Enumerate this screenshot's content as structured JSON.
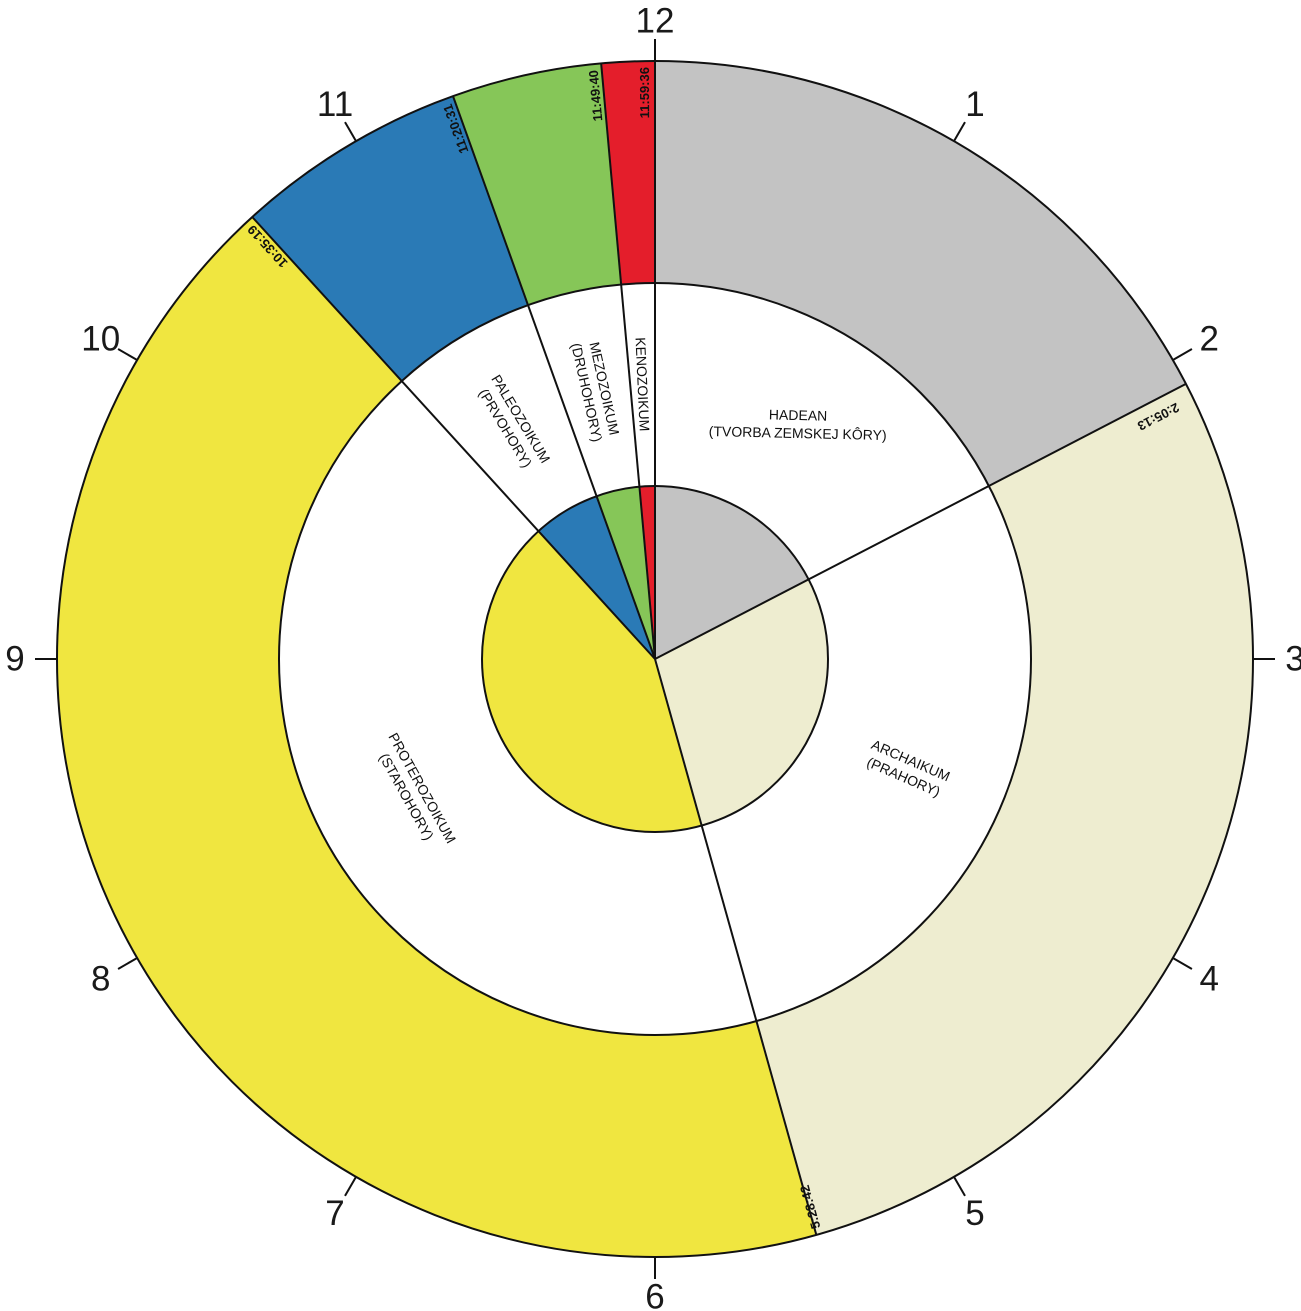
{
  "colors": {
    "hadean": "#c3c3c3",
    "archaikum": "#eeedd0",
    "proterozoikum": "#f0e640",
    "paleozoikum": "#2a7ab6",
    "mezozoikum": "#86c658",
    "kenozoikum": "#e41e2b",
    "line": "#111111"
  },
  "hours": [
    "12",
    "1",
    "2",
    "3",
    "4",
    "5",
    "6",
    "7",
    "8",
    "9",
    "10",
    "11"
  ],
  "eras": [
    {
      "id": "hadean",
      "start_time": "0:00:00",
      "end_time": "2:05:13",
      "line1": "HADEAN",
      "line2": "(TVORBA ZEMSKEJ KÔRY)"
    },
    {
      "id": "archaikum",
      "start_time": "2:05:13",
      "end_time": "5:28:42",
      "line1": "ARCHAIKUM",
      "line2": "(PRAHORY)"
    },
    {
      "id": "proterozoikum",
      "start_time": "5:28:42",
      "end_time": "10:35:19",
      "line1": "PROTEROZOIKUM",
      "line2": "(STAROHORY)"
    },
    {
      "id": "paleozoikum",
      "start_time": "10:35:19",
      "end_time": "11:20:31",
      "line1": "PALEOZOIKUM",
      "line2": "(PRVOHORY)"
    },
    {
      "id": "mezozoikum",
      "start_time": "11:20:31",
      "end_time": "11:49:40",
      "line1": "MEZOZOIKUM",
      "line2": "(DRUHOHORY)"
    },
    {
      "id": "kenozoikum",
      "start_time": "11:49:40",
      "end_time": "12:00:00",
      "line1": "KENOZOIKUM",
      "line2": ""
    }
  ],
  "boundary_labels": [
    "2:05:13",
    "5:28:42",
    "10:35:19",
    "11:20:31",
    "11:49:40",
    "11:59:36"
  ]
}
